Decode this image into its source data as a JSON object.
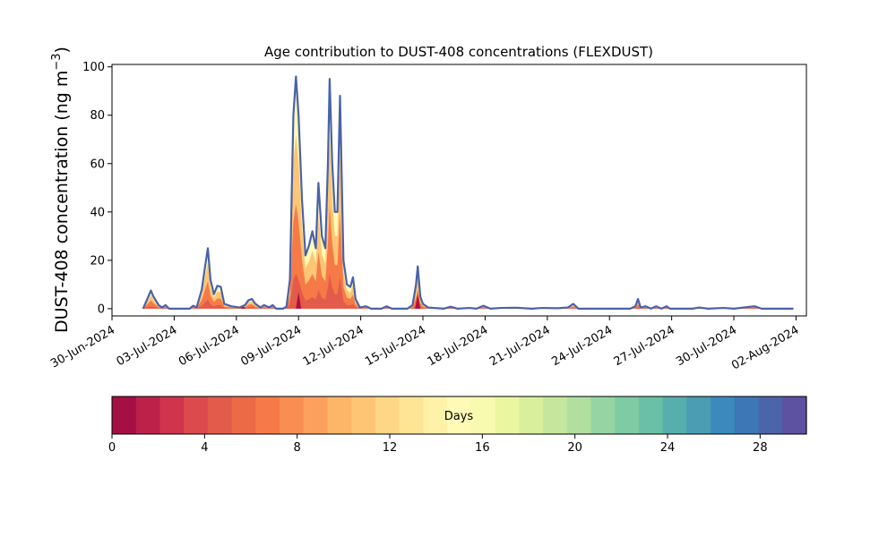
{
  "chart_data": {
    "type": "area",
    "title_prefix": "Age contribution to DUST-408 concentrations (FLEXDUST)",
    "title": "Age contribution to DUST-408 concentrations (FLEXDUST)",
    "ylabel_main": "DUST-408 concentration (ng m",
    "ylabel_sup": "−3",
    "ylabel_close": ")",
    "ylim": [
      -3,
      101
    ],
    "yticks": [
      0,
      20,
      40,
      60,
      80,
      100
    ],
    "xlim": [
      "2024-06-30T00:00",
      "2024-08-02T12:00"
    ],
    "xticks": [
      "30-Jun-2024",
      "03-Jul-2024",
      "06-Jul-2024",
      "09-Jul-2024",
      "12-Jul-2024",
      "15-Jul-2024",
      "18-Jul-2024",
      "21-Jul-2024",
      "24-Jul-2024",
      "27-Jul-2024",
      "30-Jul-2024",
      "02-Aug-2024"
    ],
    "total_series": {
      "name": "total",
      "color": "#4a62a8",
      "points": [
        [
          "2024-07-01T12:00",
          0
        ],
        [
          "2024-07-01T18:00",
          5
        ],
        [
          "2024-07-01T21:00",
          7.5
        ],
        [
          "2024-07-02T00:00",
          5
        ],
        [
          "2024-07-02T06:00",
          1.5
        ],
        [
          "2024-07-02T10:00",
          0.5
        ],
        [
          "2024-07-02T14:00",
          1.5
        ],
        [
          "2024-07-02T18:00",
          0
        ],
        [
          "2024-07-03T18:00",
          0
        ],
        [
          "2024-07-03T22:00",
          1.2
        ],
        [
          "2024-07-04T02:00",
          0.5
        ],
        [
          "2024-07-04T08:00",
          8
        ],
        [
          "2024-07-04T12:00",
          18
        ],
        [
          "2024-07-04T15:00",
          25
        ],
        [
          "2024-07-04T18:00",
          12
        ],
        [
          "2024-07-04T22:00",
          6
        ],
        [
          "2024-07-05T02:00",
          9.5
        ],
        [
          "2024-07-05T06:00",
          9
        ],
        [
          "2024-07-05T10:00",
          2
        ],
        [
          "2024-07-05T18:00",
          1
        ],
        [
          "2024-07-06T04:00",
          0.5
        ],
        [
          "2024-07-06T10:00",
          1.5
        ],
        [
          "2024-07-06T14:00",
          3.5
        ],
        [
          "2024-07-06T18:00",
          4
        ],
        [
          "2024-07-06T22:00",
          2
        ],
        [
          "2024-07-07T04:00",
          0.5
        ],
        [
          "2024-07-07T08:00",
          1.5
        ],
        [
          "2024-07-07T14:00",
          0.5
        ],
        [
          "2024-07-07T18:00",
          1.5
        ],
        [
          "2024-07-07T22:00",
          0
        ],
        [
          "2024-07-08T06:00",
          0
        ],
        [
          "2024-07-08T10:00",
          0.8
        ],
        [
          "2024-07-08T14:00",
          12
        ],
        [
          "2024-07-08T18:00",
          80
        ],
        [
          "2024-07-08T21:00",
          96
        ],
        [
          "2024-07-09T00:00",
          80
        ],
        [
          "2024-07-09T04:00",
          45
        ],
        [
          "2024-07-09T08:00",
          22
        ],
        [
          "2024-07-09T12:00",
          26
        ],
        [
          "2024-07-09T16:00",
          32
        ],
        [
          "2024-07-09T20:00",
          25
        ],
        [
          "2024-07-09T23:00",
          52
        ],
        [
          "2024-07-10T03:00",
          30
        ],
        [
          "2024-07-10T07:00",
          25
        ],
        [
          "2024-07-10T10:00",
          60
        ],
        [
          "2024-07-10T12:00",
          95
        ],
        [
          "2024-07-10T15:00",
          60
        ],
        [
          "2024-07-10T18:00",
          40
        ],
        [
          "2024-07-10T21:00",
          40
        ],
        [
          "2024-07-11T00:00",
          88
        ],
        [
          "2024-07-11T04:00",
          20
        ],
        [
          "2024-07-11T08:00",
          10
        ],
        [
          "2024-07-11T12:00",
          9
        ],
        [
          "2024-07-11T15:00",
          13
        ],
        [
          "2024-07-11T18:00",
          4
        ],
        [
          "2024-07-11T23:00",
          0.5
        ],
        [
          "2024-07-12T06:00",
          1
        ],
        [
          "2024-07-12T12:00",
          0
        ],
        [
          "2024-07-13T00:00",
          0
        ],
        [
          "2024-07-13T06:00",
          1
        ],
        [
          "2024-07-13T12:00",
          0
        ],
        [
          "2024-07-14T06:00",
          0
        ],
        [
          "2024-07-14T12:00",
          1.5
        ],
        [
          "2024-07-14T16:00",
          10
        ],
        [
          "2024-07-14T18:00",
          17.5
        ],
        [
          "2024-07-14T21:00",
          5
        ],
        [
          "2024-07-15T00:00",
          2
        ],
        [
          "2024-07-15T06:00",
          0.5
        ],
        [
          "2024-07-16T00:00",
          0
        ],
        [
          "2024-07-16T08:00",
          0.8
        ],
        [
          "2024-07-16T16:00",
          0
        ],
        [
          "2024-07-17T06:00",
          0.3
        ],
        [
          "2024-07-17T14:00",
          0
        ],
        [
          "2024-07-17T22:00",
          1.2
        ],
        [
          "2024-07-18T06:00",
          0
        ],
        [
          "2024-07-18T18:00",
          0.3
        ],
        [
          "2024-07-19T12:00",
          0.4
        ],
        [
          "2024-07-20T06:00",
          0
        ],
        [
          "2024-07-20T18:00",
          0.3
        ],
        [
          "2024-07-21T12:00",
          0.2
        ],
        [
          "2024-07-22T00:00",
          0.5
        ],
        [
          "2024-07-22T06:00",
          2
        ],
        [
          "2024-07-22T12:00",
          0
        ],
        [
          "2024-07-23T00:00",
          0
        ],
        [
          "2024-07-24T00:00",
          0
        ],
        [
          "2024-07-25T00:00",
          0
        ],
        [
          "2024-07-25T06:00",
          1
        ],
        [
          "2024-07-25T09:00",
          4
        ],
        [
          "2024-07-25T12:00",
          0.5
        ],
        [
          "2024-07-25T18:00",
          1
        ],
        [
          "2024-07-26T00:00",
          0
        ],
        [
          "2024-07-26T06:00",
          1
        ],
        [
          "2024-07-26T12:00",
          0
        ],
        [
          "2024-07-26T18:00",
          1
        ],
        [
          "2024-07-26T22:00",
          0
        ],
        [
          "2024-07-28T00:00",
          0
        ],
        [
          "2024-07-28T08:00",
          0.5
        ],
        [
          "2024-07-28T18:00",
          0
        ],
        [
          "2024-07-29T12:00",
          0.3
        ],
        [
          "2024-07-30T00:00",
          0
        ],
        [
          "2024-07-31T00:00",
          1
        ],
        [
          "2024-07-31T08:00",
          0
        ],
        [
          "2024-08-01T21:00",
          0
        ]
      ]
    },
    "age_fill": {
      "lower_layers": [
        {
          "age_days": 4,
          "fraction": 0.15
        },
        {
          "age_days": 6,
          "fraction": 0.45
        },
        {
          "age_days": 10,
          "fraction": 0.75
        },
        {
          "age_days": 14,
          "fraction": 1.0
        }
      ],
      "red_spikes": [
        {
          "date": "2024-07-09T00:00",
          "value": 7
        },
        {
          "date": "2024-07-14T18:00",
          "value": 6
        },
        {
          "date": "2024-07-06T08:00",
          "value": 1
        }
      ]
    },
    "colorbar": {
      "label": "Days",
      "min": 0,
      "max": 30,
      "ticks": [
        0,
        4,
        8,
        12,
        16,
        20,
        24,
        28
      ],
      "colors": [
        "#a50f44",
        "#bd2048",
        "#d0344c",
        "#dc4a4d",
        "#e35b4b",
        "#ed6a46",
        "#f57a48",
        "#f98e53",
        "#fca15d",
        "#fdb567",
        "#fec574",
        "#fed685",
        "#fee596",
        "#fff1a7",
        "#fffbb6",
        "#f8fbaf",
        "#ebf7a0",
        "#d9ef9b",
        "#c5e79d",
        "#b0df9f",
        "#96d5a3",
        "#7ecba4",
        "#6ac0a6",
        "#56afad",
        "#4a9db3",
        "#3b8abb",
        "#3d77b6",
        "#4b64aa",
        "#5c52a1"
      ]
    }
  }
}
